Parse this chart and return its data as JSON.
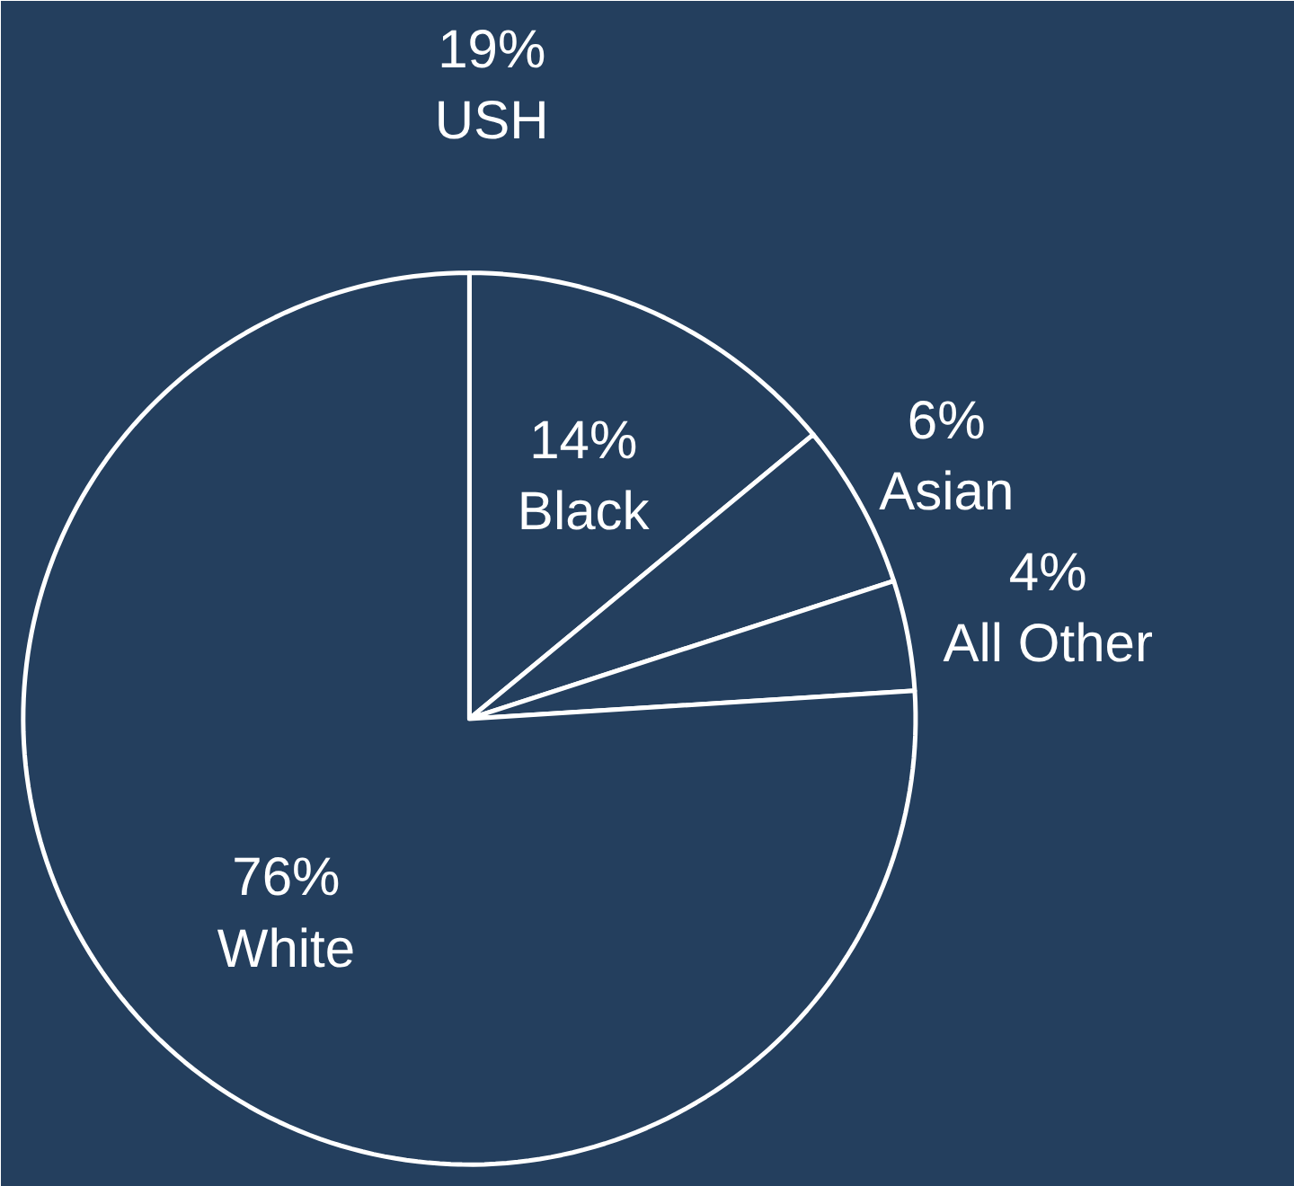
{
  "chart_data": {
    "type": "pie",
    "categories": [
      "Black",
      "Asian",
      "All Other",
      "White"
    ],
    "values": [
      14,
      6,
      4,
      76
    ],
    "value_labels": [
      "14%",
      "6%",
      "4%",
      "76%"
    ],
    "colors": [
      "#243f5e",
      "#243f5e",
      "#243f5e",
      "#243f5e"
    ],
    "annotations": [
      "19%\nUSH"
    ]
  }
}
